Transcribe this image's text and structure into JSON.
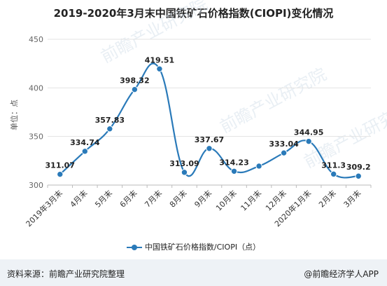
{
  "title": "2019-2020年3月末中国铁矿石价格指数(CIOPI)变化情况",
  "watermark": "前瞻产业研究院",
  "footer": {
    "source": "资料来源：前瞻产业研究院整理",
    "brand": "@前瞻经济学人APP"
  },
  "chart_data": {
    "type": "line",
    "ylabel": "单位：点",
    "ylim": [
      300,
      450
    ],
    "yticks": [
      300,
      350,
      400,
      450
    ],
    "grid": true,
    "legend_position": "bottom",
    "categories": [
      "2019年3月末",
      "4月末",
      "5月末",
      "6月末",
      "7月末",
      "8月末",
      "9月末",
      "10月末",
      "11月末",
      "12月末",
      "2020年1月末",
      "2月末",
      "3月末"
    ],
    "series": [
      {
        "name": "中国铁矿石价格指数/CIOPI（点）",
        "color": "#2a7ab9",
        "values": [
          311.07,
          334.74,
          357.83,
          398.32,
          419.51,
          313.09,
          337.67,
          314.23,
          319.5,
          333.04,
          344.95,
          311.3,
          309.2
        ],
        "labels": [
          "311.07",
          "334.74",
          "357.83",
          "398.32",
          "419.51",
          "313.09",
          "337.67",
          "314.23",
          "",
          "333.04",
          "344.95",
          "311.3",
          "309.2"
        ]
      }
    ]
  }
}
